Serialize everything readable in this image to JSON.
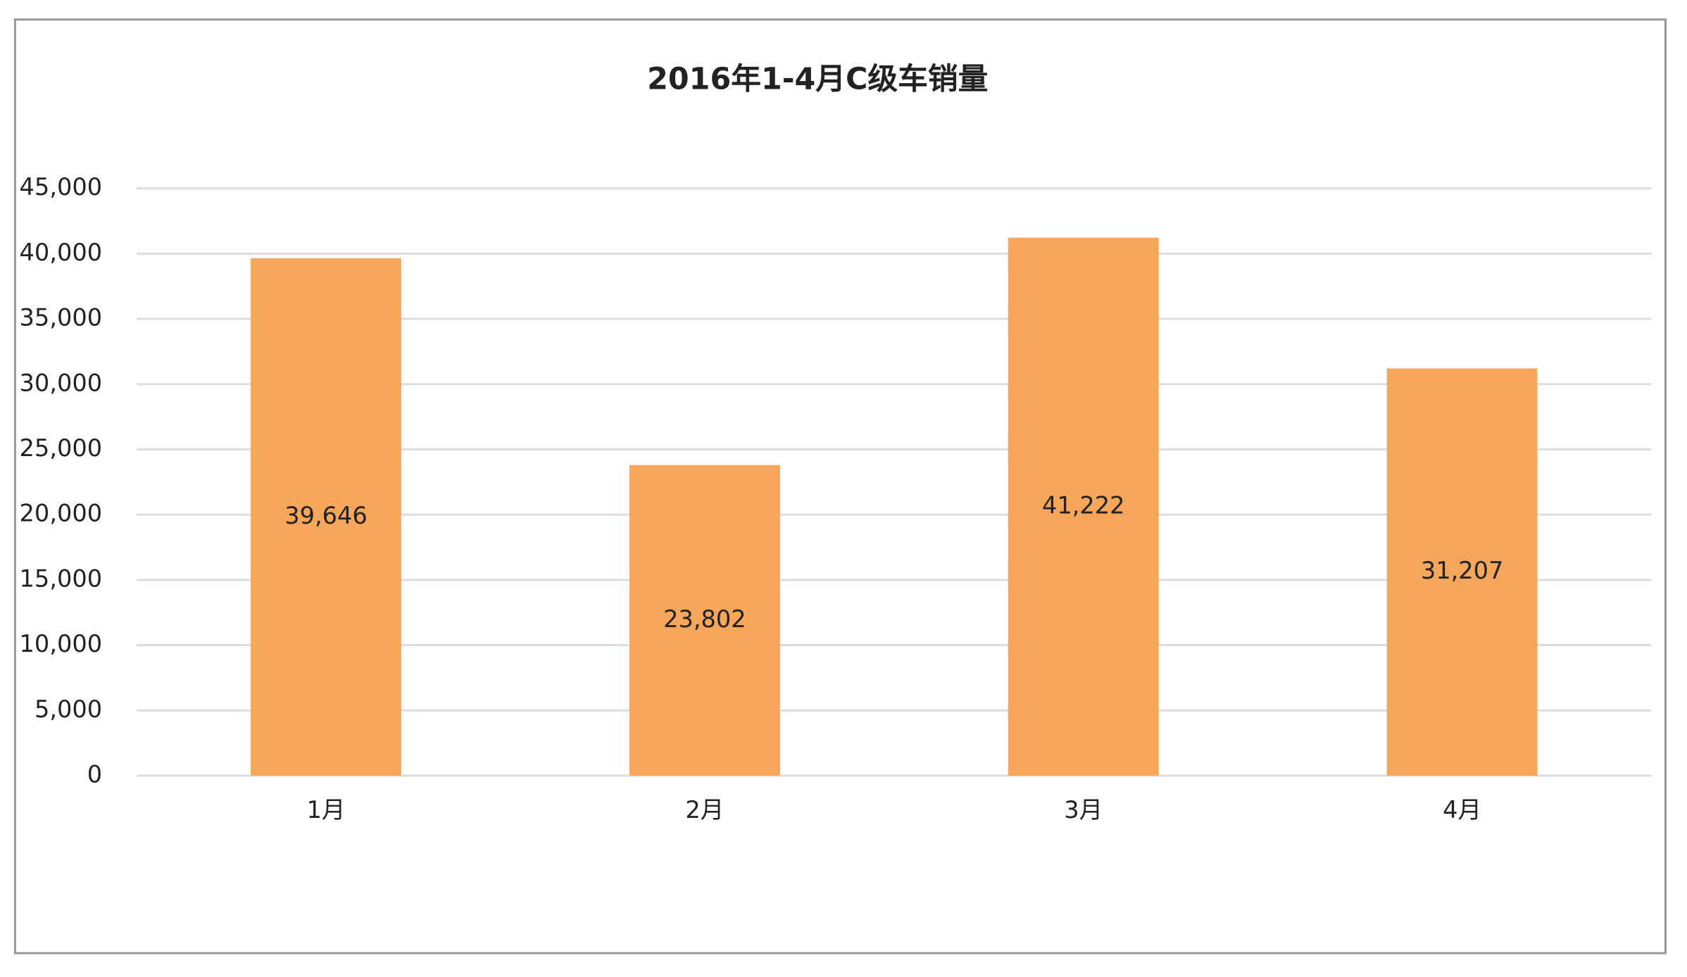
{
  "chart_data": {
    "type": "bar",
    "title": "2016年1-4月C级车销量",
    "categories": [
      "1月",
      "2月",
      "3月",
      "4月"
    ],
    "values": [
      39646,
      23802,
      41222,
      31207
    ],
    "value_labels": [
      "39,646",
      "23,802",
      "41,222",
      "31,207"
    ],
    "color": "#f6a75b",
    "ylim": [
      0,
      45000
    ],
    "yticks": [
      0,
      {
        "value": 5000,
        "label": "5,000"
      },
      {
        "value": 10000,
        "label": "10,000"
      },
      {
        "value": 15000,
        "label": "15,000"
      },
      {
        "value": 20000,
        "label": "20,000"
      },
      {
        "value": 25000,
        "label": "25,000"
      },
      {
        "value": 30000,
        "label": "30,000"
      },
      {
        "value": 35000,
        "label": "35,000"
      },
      {
        "value": 40000,
        "label": "40,000"
      },
      {
        "value": 45000,
        "label": "45,000"
      }
    ],
    "grid": true
  }
}
